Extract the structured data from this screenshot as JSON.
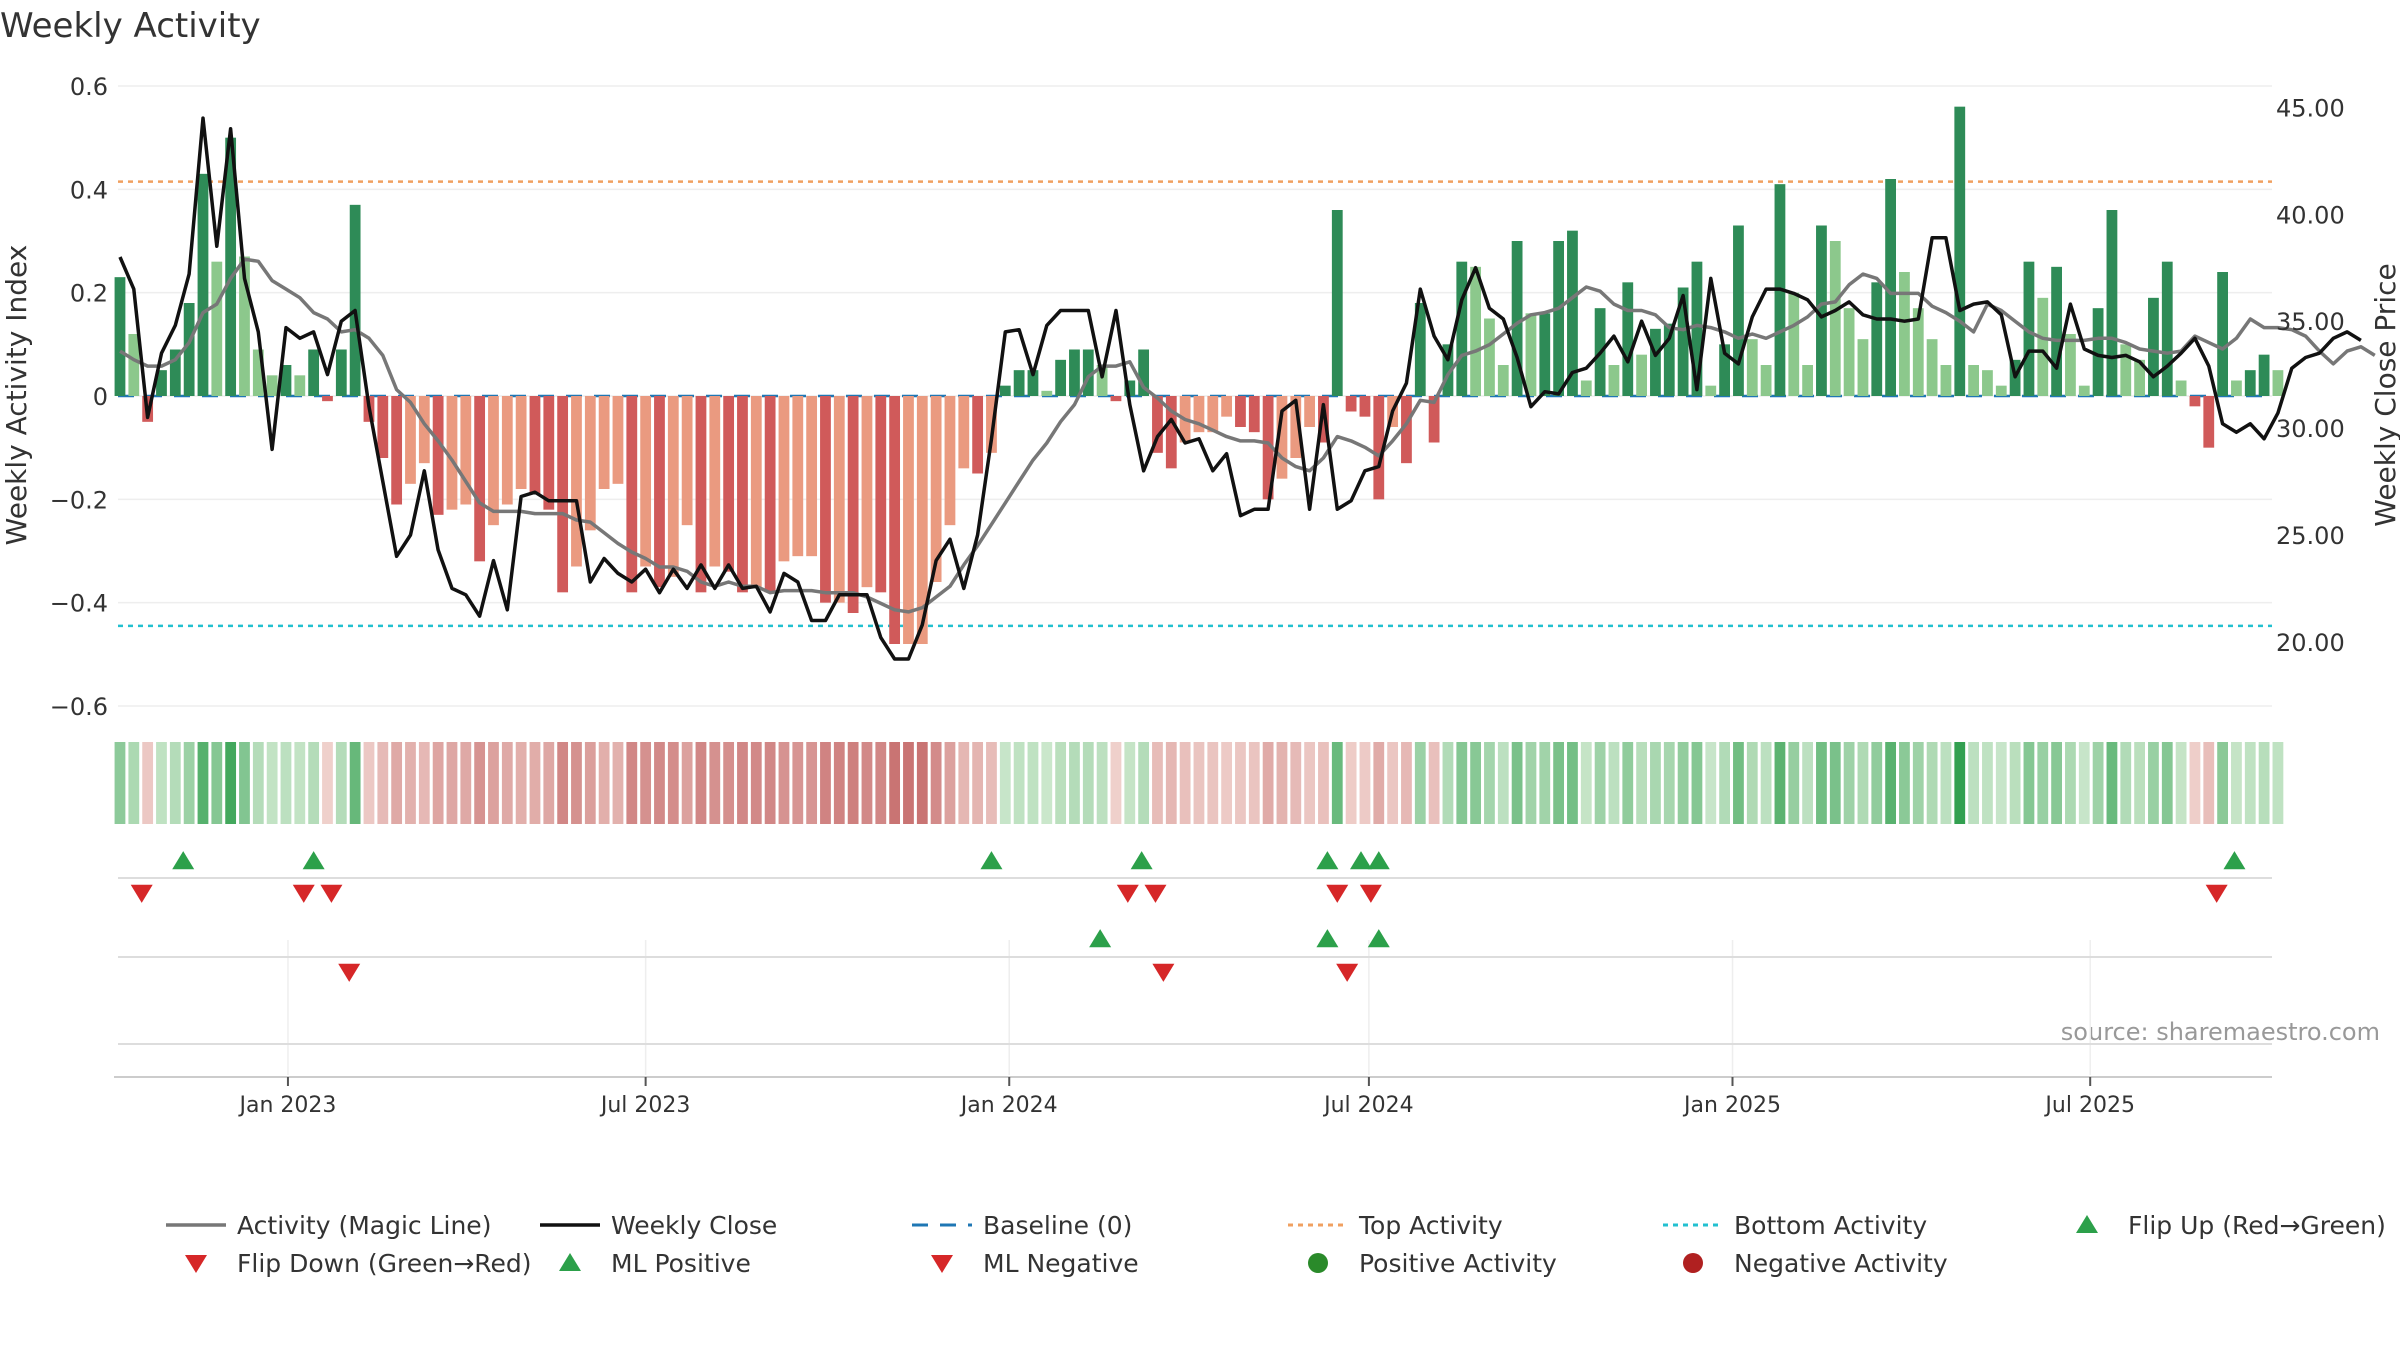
{
  "chart_data": {
    "type": "bar",
    "title": "Weekly Activity",
    "ylabel": "Weekly Activity Index",
    "y2label": "Weekly Close Price",
    "ylim": [
      -0.6,
      0.6
    ],
    "yticks": [
      -0.6,
      -0.4,
      -0.2,
      0,
      0.2,
      0.4,
      0.6
    ],
    "ytick_labels": [
      "−0.6",
      "−0.4",
      "−0.2",
      "0",
      "0.2",
      "0.4",
      "0.6"
    ],
    "y2lim": [
      17,
      46
    ],
    "y2ticks": [
      20,
      25,
      30,
      35,
      40,
      45
    ],
    "y2tick_labels": [
      "20.00",
      "25.00",
      "30.00",
      "35.00",
      "40.00",
      "45.00"
    ],
    "xlim": [
      "2022-10-07",
      "2025-10-01"
    ],
    "xticks": [
      "2023-01-01",
      "2023-07-01",
      "2024-01-01",
      "2024-07-01",
      "2025-01-01",
      "2025-07-01"
    ],
    "xtick_labels": [
      "Jan 2023",
      "Jul 2023",
      "Jan 2024",
      "Jul 2024",
      "Jan 2025",
      "Jul 2025"
    ],
    "first_week": "2022-10-08",
    "week_days": 7,
    "activity": [
      0.23,
      0.12,
      -0.05,
      0.05,
      0.09,
      0.18,
      0.43,
      0.26,
      0.5,
      0.27,
      0.09,
      0.04,
      0.06,
      0.04,
      0.09,
      -0.01,
      0.09,
      0.37,
      -0.05,
      -0.12,
      -0.21,
      -0.17,
      -0.13,
      -0.23,
      -0.22,
      -0.21,
      -0.32,
      -0.25,
      -0.21,
      -0.18,
      -0.19,
      -0.22,
      -0.38,
      -0.33,
      -0.26,
      -0.18,
      -0.17,
      -0.38,
      -0.33,
      -0.37,
      -0.35,
      -0.25,
      -0.38,
      -0.33,
      -0.34,
      -0.38,
      -0.37,
      -0.38,
      -0.32,
      -0.31,
      -0.31,
      -0.4,
      -0.4,
      -0.42,
      -0.37,
      -0.38,
      -0.48,
      -0.48,
      -0.48,
      -0.36,
      -0.25,
      -0.14,
      -0.15,
      -0.11,
      0.02,
      0.05,
      0.05,
      0.01,
      0.07,
      0.09,
      0.09,
      0.06,
      -0.01,
      0.03,
      0.09,
      -0.11,
      -0.14,
      -0.09,
      -0.07,
      -0.07,
      -0.04,
      -0.06,
      -0.07,
      -0.2,
      -0.16,
      -0.12,
      -0.06,
      -0.09,
      0.36,
      -0.03,
      -0.04,
      -0.2,
      -0.06,
      -0.13,
      0.18,
      -0.09,
      0.1,
      0.26,
      0.25,
      0.15,
      0.06,
      0.3,
      0.16,
      0.16,
      0.3,
      0.32,
      0.03,
      0.17,
      0.06,
      0.22,
      0.08,
      0.13,
      0.14,
      0.21,
      0.26,
      0.02,
      0.1,
      0.33,
      0.11,
      0.06,
      0.41,
      0.2,
      0.06,
      0.33,
      0.3,
      0.17,
      0.11,
      0.22,
      0.42,
      0.24,
      0.17,
      0.11,
      0.06,
      0.56,
      0.06,
      0.05,
      0.02,
      0.07,
      0.26,
      0.19,
      0.25,
      0.12,
      0.02,
      0.17,
      0.36,
      0.1,
      0.07,
      0.19,
      0.26,
      0.03,
      -0.02,
      -0.1,
      0.24,
      0.03,
      0.05,
      0.08,
      0.05
    ],
    "weekly_close": [
      38,
      36.5,
      30.5,
      33.5,
      34.8,
      37.2,
      44.5,
      38.5,
      44,
      37,
      34.5,
      29,
      34.7,
      34.2,
      34.5,
      32.5,
      35,
      35.5,
      31,
      27.5,
      24,
      25,
      28,
      24.3,
      22.5,
      22.2,
      21.2,
      23.8,
      21.5,
      26.8,
      27,
      26.6,
      26.6,
      26.6,
      22.8,
      23.9,
      23.2,
      22.8,
      23.4,
      22.3,
      23.4,
      22.5,
      23.6,
      22.5,
      23.6,
      22.5,
      22.6,
      21.4,
      23.2,
      22.8,
      21,
      21,
      22.2,
      22.2,
      22.2,
      20.2,
      19.2,
      19.2,
      20.8,
      23.8,
      24.8,
      22.5,
      25,
      29.5,
      34.5,
      34.6,
      32.5,
      34.8,
      35.5,
      35.5,
      35.5,
      32.4,
      35.5,
      31.1,
      28,
      29.6,
      30.4,
      29.3,
      29.5,
      28,
      28.8,
      25.9,
      26.2,
      26.2,
      30.8,
      31.3,
      26.2,
      31.1,
      26.2,
      26.6,
      28,
      28.2,
      30.8,
      32.1,
      36.5,
      34.3,
      33.2,
      36,
      37.5,
      35.6,
      35.1,
      33.3,
      31,
      31.7,
      31.6,
      32.6,
      32.8,
      33.5,
      34.3,
      33.1,
      35,
      33.4,
      34.2,
      36.2,
      31.8,
      37,
      33.5,
      33,
      35.2,
      36.5,
      36.5,
      36.3,
      36,
      35.2,
      35.5,
      35.9,
      35.3,
      35.1,
      35.1,
      35,
      35.1,
      38.9,
      38.9,
      35.5,
      35.8,
      35.9,
      35.3,
      32.4,
      33.6,
      33.6,
      32.8,
      35.8,
      33.7,
      33.4,
      33.3,
      33.4,
      33.1,
      32.4,
      32.9,
      33.5,
      34.2,
      32.9,
      30.2,
      29.8,
      30.2,
      29.5,
      30.7,
      32.8,
      33.3,
      33.5,
      34.2,
      34.5,
      34.1
    ],
    "magic_line": [
      33.6,
      33.2,
      32.9,
      32.9,
      33.2,
      34,
      35.4,
      35.8,
      37,
      37.9,
      37.8,
      36.9,
      36.5,
      36.1,
      35.4,
      35.1,
      34.5,
      34.6,
      34.2,
      33.4,
      31.8,
      31.2,
      30.2,
      29.4,
      28.5,
      27.5,
      26.5,
      26.1,
      26.1,
      26.1,
      26,
      26,
      26,
      25.7,
      25.6,
      25.1,
      24.6,
      24.2,
      23.9,
      23.5,
      23.5,
      23.3,
      22.8,
      22.6,
      22.8,
      22.6,
      22.6,
      22.3,
      22.4,
      22.4,
      22.4,
      22.3,
      22.3,
      22.3,
      22.1,
      21.8,
      21.5,
      21.4,
      21.6,
      22.1,
      22.6,
      23.6,
      24.5,
      25.5,
      26.5,
      27.5,
      28.5,
      29.3,
      30.3,
      31.1,
      32.4,
      32.9,
      32.9,
      33.1,
      31.9,
      31.4,
      30.8,
      30.4,
      30.2,
      29.9,
      29.6,
      29.4,
      29.4,
      29.3,
      28.6,
      28.2,
      28,
      28.6,
      29.6,
      29.4,
      29.1,
      28.7,
      29.4,
      30.2,
      31.3,
      31.2,
      32.5,
      33.4,
      33.6,
      33.9,
      34.4,
      34.9,
      35.3,
      35.4,
      35.6,
      36.1,
      36.6,
      36.4,
      35.8,
      35.5,
      35.5,
      35.3,
      34.7,
      34.6,
      34.8,
      34.7,
      34.5,
      34.2,
      34.4,
      34.2,
      34.5,
      34.8,
      35.2,
      35.8,
      35.9,
      36.7,
      37.2,
      37,
      36.3,
      36.3,
      36.3,
      35.7,
      35.4,
      35,
      34.5,
      35.8,
      35.5,
      35,
      34.5,
      34.2,
      34.1,
      34.1,
      34.1,
      34.2,
      34.2,
      34,
      33.7,
      33.6,
      33.5,
      33.6,
      34.3,
      34,
      33.7,
      34.2,
      35.1,
      34.7,
      34.7,
      34.6,
      34.3,
      33.6,
      33,
      33.6,
      33.8,
      33.4
    ],
    "top_activity": 0.415,
    "bottom_activity": -0.445,
    "markers": {
      "flip_up": [
        "2022-11-09",
        "2023-01-14",
        "2023-12-23",
        "2024-03-08",
        "2024-06-10",
        "2024-06-27",
        "2024-07-06",
        "2025-09-12"
      ],
      "flip_down": [
        "2022-10-19",
        "2023-01-09",
        "2023-01-23",
        "2024-03-01",
        "2024-03-15",
        "2024-06-15",
        "2024-07-02",
        "2025-09-03"
      ],
      "ml_positive": [
        "2024-02-16",
        "2024-06-10",
        "2024-07-06"
      ],
      "ml_negative": [
        "2023-02-01",
        "2024-03-19",
        "2024-06-20"
      ],
      "positive_activity": [],
      "negative_activity": []
    },
    "signal_rows": [
      "flip",
      "magic_line",
      "activity"
    ],
    "source": "source: sharemaestro.com",
    "legend": [
      {
        "label": "Activity (Magic Line)",
        "kind": "line",
        "color": "#777777"
      },
      {
        "label": "Weekly Close",
        "kind": "line",
        "color": "#111111"
      },
      {
        "label": "Baseline (0)",
        "kind": "dashed",
        "color": "#1f77b4"
      },
      {
        "label": "Top Activity",
        "kind": "dotted",
        "color": "#f0a060"
      },
      {
        "label": "Bottom Activity",
        "kind": "dotted",
        "color": "#22c0d0"
      },
      {
        "label": "Flip Up (Red→Green)",
        "kind": "tri-up",
        "color": "#2ca04a"
      },
      {
        "label": "Flip Down (Green→Red)",
        "kind": "tri-down",
        "color": "#d62728"
      },
      {
        "label": "ML Positive",
        "kind": "tri-up",
        "color": "#2ca04a"
      },
      {
        "label": "ML Negative",
        "kind": "tri-down",
        "color": "#d62728"
      },
      {
        "label": "Positive Activity",
        "kind": "dot",
        "color": "#2a8a2a"
      },
      {
        "label": "Negative Activity",
        "kind": "dot",
        "color": "#b02020"
      }
    ],
    "colors": {
      "pos_dark": "#2e8b57",
      "pos_light": "#8cc88c",
      "neg_dark": "#d05a5a",
      "neg_light": "#ea9a80",
      "grid": "#eeeeee",
      "axis": "#cccccc",
      "close_line": "#111111",
      "magic_line": "#777777",
      "baseline": "#1f77b4",
      "top": "#f0a060",
      "bottom": "#22c0d0",
      "up_marker": "#2ca04a",
      "down_marker": "#d62728"
    }
  }
}
